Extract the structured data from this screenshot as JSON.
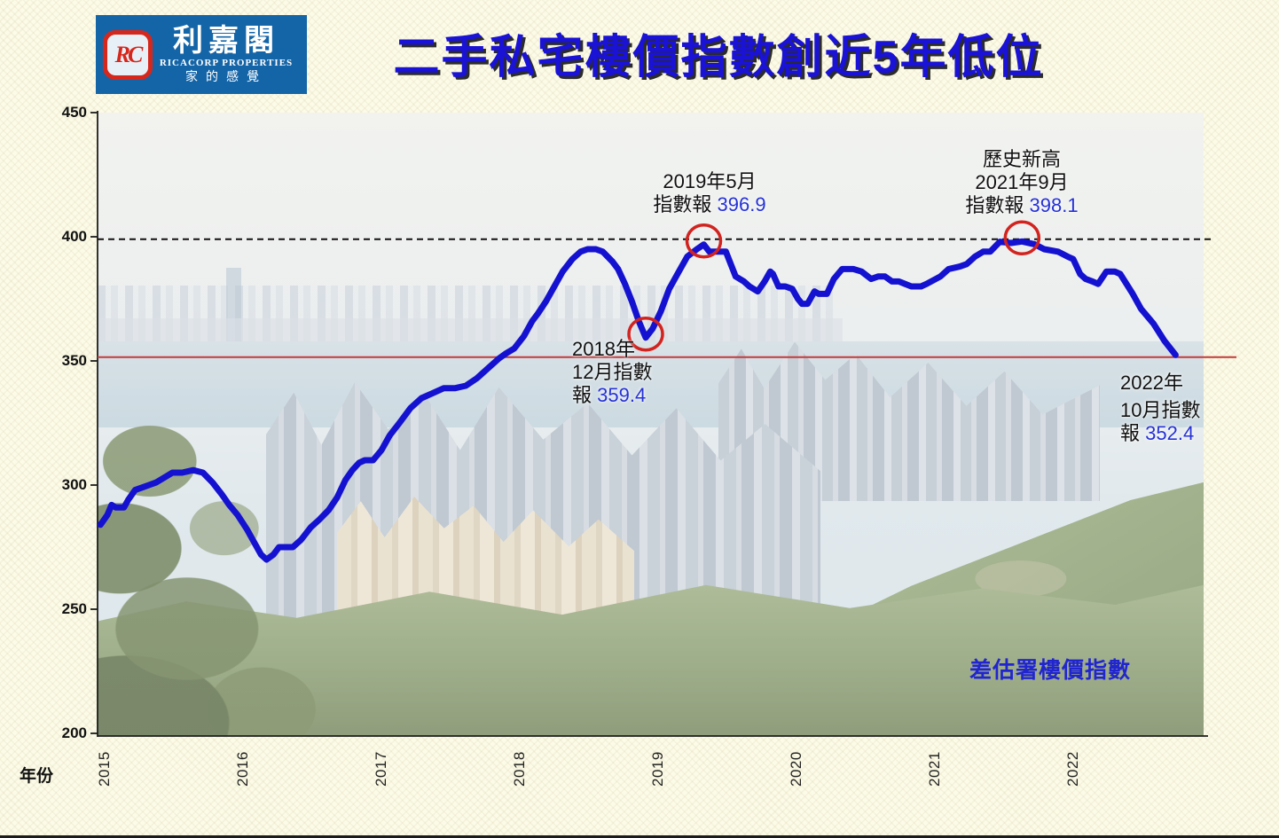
{
  "header": {
    "logo": {
      "monogram": "RC",
      "name_zh": "利嘉閣",
      "name_en": "RICACORP PROPERTIES",
      "tagline": "家的感覺",
      "bg_color": "#1465A8",
      "emblem_color": "#D6271C"
    },
    "title": "二手私宅樓價指數創近5年低位",
    "title_color": "#1A12D4"
  },
  "chart_data": {
    "type": "line",
    "title": "二手私宅樓價指數創近5年低位",
    "xlabel": "年份",
    "ylabel": "",
    "series_label": "差估署樓價指數",
    "x_ticks": [
      "2015",
      "2016",
      "2017",
      "2018",
      "2019",
      "2020",
      "2021",
      "2022"
    ],
    "y_ticks": [
      450,
      400,
      350,
      300,
      250,
      200
    ],
    "xlim": [
      2014.95,
      2023.0
    ],
    "ylim": [
      200,
      450
    ],
    "grid": false,
    "legend_position": "none",
    "line_color": "#1412D0",
    "marker_color": "#D2231F",
    "reference_lines": {
      "dashed_black": {
        "value": 399,
        "color": "#111111",
        "style": "dashed"
      },
      "solid_red": {
        "value": 351.5,
        "color": "#C23B3B",
        "style": "solid"
      }
    },
    "points": [
      [
        2014.97,
        284
      ],
      [
        2015.02,
        288
      ],
      [
        2015.05,
        292
      ],
      [
        2015.08,
        291
      ],
      [
        2015.14,
        291
      ],
      [
        2015.17,
        294
      ],
      [
        2015.22,
        298
      ],
      [
        2015.27,
        299
      ],
      [
        2015.32,
        300
      ],
      [
        2015.37,
        301
      ],
      [
        2015.43,
        303
      ],
      [
        2015.49,
        305
      ],
      [
        2015.56,
        305
      ],
      [
        2015.64,
        306
      ],
      [
        2015.71,
        305
      ],
      [
        2015.78,
        301
      ],
      [
        2015.85,
        296
      ],
      [
        2015.9,
        292
      ],
      [
        2015.96,
        288
      ],
      [
        2016.03,
        282
      ],
      [
        2016.09,
        276
      ],
      [
        2016.13,
        272
      ],
      [
        2016.17,
        270
      ],
      [
        2016.22,
        272
      ],
      [
        2016.26,
        275
      ],
      [
        2016.31,
        275
      ],
      [
        2016.36,
        275
      ],
      [
        2016.42,
        278
      ],
      [
        2016.49,
        283
      ],
      [
        2016.55,
        286
      ],
      [
        2016.62,
        290
      ],
      [
        2016.68,
        295
      ],
      [
        2016.74,
        302
      ],
      [
        2016.79,
        306
      ],
      [
        2016.84,
        309
      ],
      [
        2016.88,
        310
      ],
      [
        2016.94,
        310
      ],
      [
        2017.0,
        314
      ],
      [
        2017.06,
        320
      ],
      [
        2017.13,
        325
      ],
      [
        2017.21,
        331
      ],
      [
        2017.29,
        335
      ],
      [
        2017.37,
        337
      ],
      [
        2017.45,
        339
      ],
      [
        2017.53,
        339
      ],
      [
        2017.61,
        340
      ],
      [
        2017.69,
        343
      ],
      [
        2017.77,
        347
      ],
      [
        2017.85,
        351
      ],
      [
        2017.9,
        353
      ],
      [
        2017.96,
        355
      ],
      [
        2018.03,
        360
      ],
      [
        2018.09,
        366
      ],
      [
        2018.13,
        369
      ],
      [
        2018.19,
        374
      ],
      [
        2018.25,
        380
      ],
      [
        2018.31,
        386
      ],
      [
        2018.38,
        391
      ],
      [
        2018.44,
        394
      ],
      [
        2018.49,
        395
      ],
      [
        2018.55,
        395
      ],
      [
        2018.6,
        394
      ],
      [
        2018.67,
        390
      ],
      [
        2018.71,
        387
      ],
      [
        2018.76,
        381
      ],
      [
        2018.81,
        374
      ],
      [
        2018.86,
        366
      ],
      [
        2018.91,
        359.4
      ],
      [
        2018.96,
        363
      ],
      [
        2019.02,
        370
      ],
      [
        2019.08,
        379
      ],
      [
        2019.15,
        386
      ],
      [
        2019.21,
        392
      ],
      [
        2019.28,
        395
      ],
      [
        2019.33,
        396.9
      ],
      [
        2019.37,
        394
      ],
      [
        2019.45,
        394
      ],
      [
        2019.49,
        394
      ],
      [
        2019.56,
        384
      ],
      [
        2019.62,
        382
      ],
      [
        2019.66,
        380
      ],
      [
        2019.72,
        378
      ],
      [
        2019.77,
        382
      ],
      [
        2019.81,
        386
      ],
      [
        2019.83,
        385
      ],
      [
        2019.87,
        380
      ],
      [
        2019.92,
        380
      ],
      [
        2019.97,
        379
      ],
      [
        2020.01,
        375
      ],
      [
        2020.04,
        373
      ],
      [
        2020.08,
        373
      ],
      [
        2020.13,
        378
      ],
      [
        2020.16,
        377
      ],
      [
        2020.22,
        377
      ],
      [
        2020.27,
        383
      ],
      [
        2020.33,
        387
      ],
      [
        2020.41,
        387
      ],
      [
        2020.47,
        386
      ],
      [
        2020.54,
        383
      ],
      [
        2020.59,
        384
      ],
      [
        2020.64,
        384
      ],
      [
        2020.69,
        382
      ],
      [
        2020.74,
        382
      ],
      [
        2020.83,
        380
      ],
      [
        2020.9,
        380
      ],
      [
        2020.94,
        381
      ],
      [
        2021.04,
        384
      ],
      [
        2021.1,
        387
      ],
      [
        2021.18,
        388
      ],
      [
        2021.23,
        389
      ],
      [
        2021.29,
        392
      ],
      [
        2021.35,
        394
      ],
      [
        2021.4,
        394
      ],
      [
        2021.47,
        398
      ],
      [
        2021.55,
        397.5
      ],
      [
        2021.63,
        398.1
      ],
      [
        2021.72,
        397
      ],
      [
        2021.79,
        395
      ],
      [
        2021.89,
        394
      ],
      [
        2021.96,
        392
      ],
      [
        2022.0,
        391
      ],
      [
        2022.05,
        385
      ],
      [
        2022.09,
        383
      ],
      [
        2022.14,
        382
      ],
      [
        2022.18,
        381
      ],
      [
        2022.24,
        386
      ],
      [
        2022.3,
        386
      ],
      [
        2022.34,
        385
      ],
      [
        2022.43,
        377
      ],
      [
        2022.49,
        371
      ],
      [
        2022.58,
        365
      ],
      [
        2022.66,
        358
      ],
      [
        2022.74,
        352.4
      ]
    ],
    "highlight_markers": [
      {
        "year": 2018.91,
        "value": 359.4
      },
      {
        "year": 2019.33,
        "value": 396.9
      },
      {
        "year": 2021.63,
        "value": 398.1
      }
    ],
    "annotations": {
      "may2019": {
        "line1": "2019年5月",
        "line2_prefix": "指數報 ",
        "value": "396.9"
      },
      "sep2021": {
        "line0": "歷史新高",
        "line1": "2021年9月",
        "line2_prefix": "指數報 ",
        "value": "398.1"
      },
      "dec2018": {
        "line1": "2018年",
        "line2": "12月指數",
        "line3_prefix": "報 ",
        "value": "359.4"
      },
      "oct2022": {
        "line1": "2022年",
        "line2": "10月指數",
        "line3_prefix": "報 ",
        "value": "352.4"
      }
    }
  }
}
